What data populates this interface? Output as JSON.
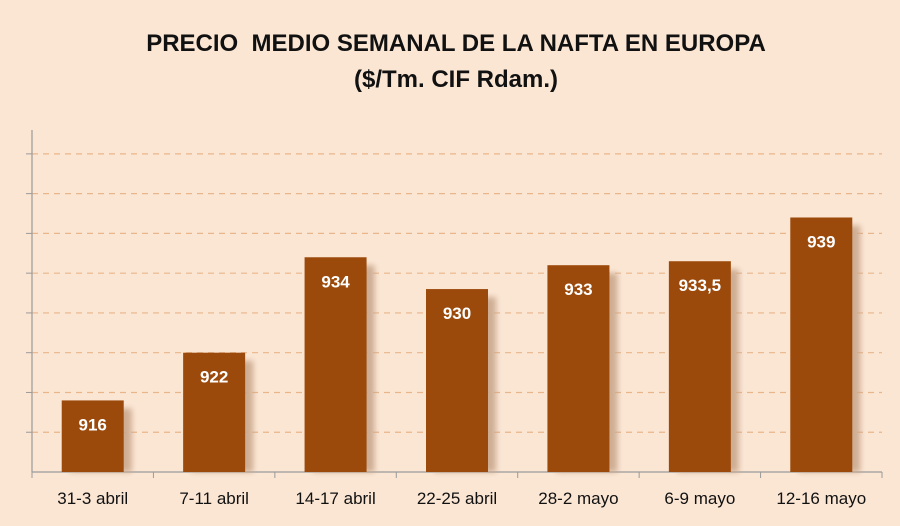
{
  "chart_data": {
    "type": "bar",
    "title": "PRECIO  MEDIO SEMANAL DE LA NAFTA EN EUROPA",
    "subtitle": "($/Tm. CIF Rdam.)",
    "xlabel": "",
    "ylabel": "",
    "categories": [
      "31-3 abril",
      "7-11 abril",
      "14-17 abril",
      "22-25 abril",
      "28-2 mayo",
      "6-9 mayo",
      "12-16 mayo"
    ],
    "values": [
      916,
      922,
      934,
      930,
      933,
      933.5,
      939
    ],
    "value_labels": [
      "916",
      "922",
      "934",
      "930",
      "933",
      "933,5",
      "939"
    ],
    "ylim": [
      907,
      950
    ],
    "y_step": 5,
    "grid": true,
    "legend": "none",
    "colors": {
      "background": "#fbe6d4",
      "bar": "#9b4a0b",
      "bar_shadow": "#c9a78c",
      "grid": "#e9b58a",
      "axis": "#9a9a9a"
    }
  }
}
